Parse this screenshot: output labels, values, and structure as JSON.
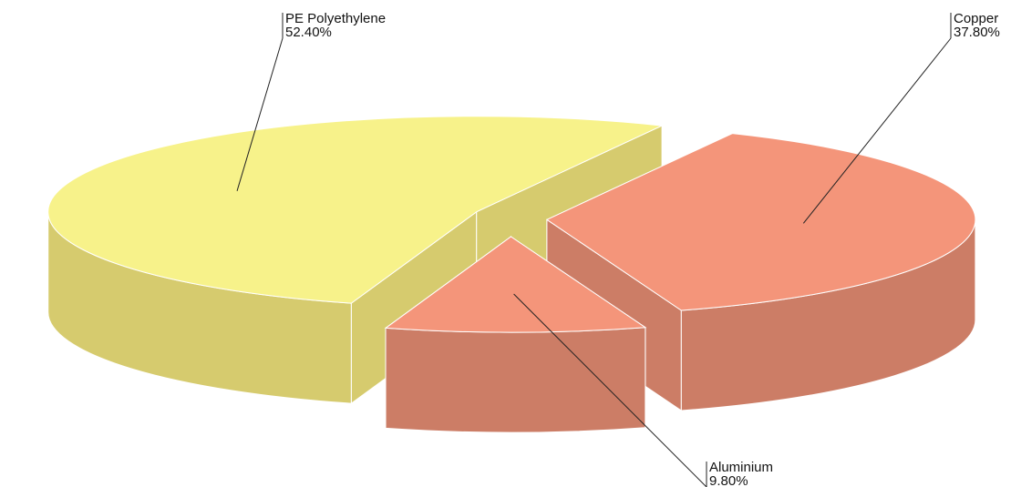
{
  "chart_data": {
    "type": "pie3d",
    "categories": [
      "PE Polyethylene",
      "Copper",
      "Aluminium"
    ],
    "values": [
      52.4,
      37.8,
      9.8
    ],
    "value_labels": [
      "52.40%",
      "37.80%",
      "9.80%"
    ],
    "colors": [
      "#f7f28a",
      "#f4957a",
      "#f4957a"
    ],
    "side_colors": [
      "#d6cb6e",
      "#cc7d66",
      "#cc7d66"
    ]
  }
}
